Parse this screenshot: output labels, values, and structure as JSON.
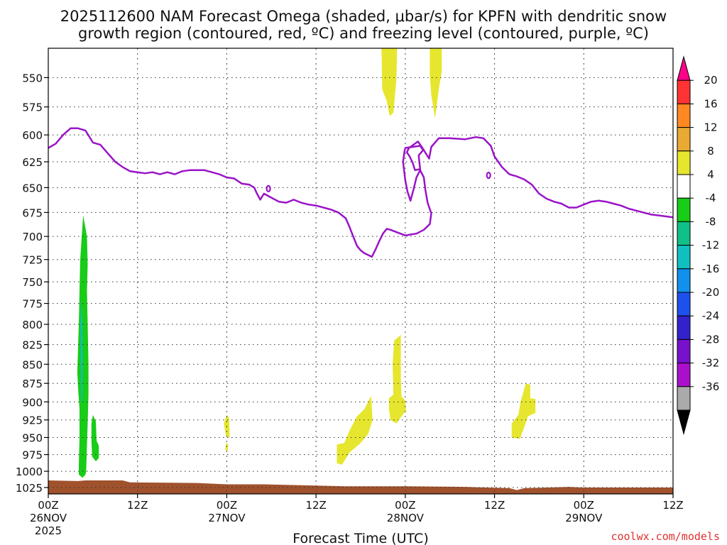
{
  "chart_data": {
    "type": "contour",
    "title_line1": "2025112600 NAM Forecast Omega (shaded, μbar/s) for KPFN with dendritic snow",
    "title_line2": "growth region (contoured, red, ºC) and freezing level (contoured, purple, ºC)",
    "xlabel": "Forecast Time (UTC)",
    "credit": "coolwx.com/models",
    "x_range_hours": [
      0,
      84
    ],
    "x_ticks": [
      {
        "h": 0,
        "label": "00Z",
        "date": "26NOV",
        "year": "2025"
      },
      {
        "h": 12,
        "label": "12Z",
        "date": "",
        "year": ""
      },
      {
        "h": 24,
        "label": "00Z",
        "date": "27NOV",
        "year": ""
      },
      {
        "h": 36,
        "label": "12Z",
        "date": "",
        "year": ""
      },
      {
        "h": 48,
        "label": "00Z",
        "date": "28NOV",
        "year": ""
      },
      {
        "h": 60,
        "label": "12Z",
        "date": "",
        "year": ""
      },
      {
        "h": 72,
        "label": "00Z",
        "date": "29NOV",
        "year": ""
      },
      {
        "h": 84,
        "label": "12Z",
        "date": "",
        "year": ""
      }
    ],
    "y_axis": {
      "unit": "hPa",
      "top": 526,
      "bottom": 1035,
      "log_scale": true,
      "ticks": [
        "550",
        "575",
        "600",
        "625",
        "650",
        "675",
        "700",
        "725",
        "750",
        "775",
        "800",
        "825",
        "850",
        "875",
        "900",
        "925",
        "950",
        "975",
        "1000",
        "1025"
      ]
    },
    "colorbar": {
      "labels": [
        "20",
        "16",
        "12",
        "8",
        "4",
        "-4",
        "-8",
        "-12",
        "-16",
        "-20",
        "-24",
        "-28",
        "-32",
        "-36"
      ],
      "colors": [
        "#ff0088",
        "#ff3333",
        "#ff8822",
        "#e8aa33",
        "#e6e62e",
        "#ffffff",
        "#18cc18",
        "#10c088",
        "#10c0c0",
        "#1190ee",
        "#1e50ee",
        "#3322cc",
        "#7711cc",
        "#aa10cc",
        "#aaaaaa",
        "#000000"
      ]
    },
    "colors": {
      "freezing": "#9a14c8",
      "ground": "#a0522d",
      "positive": "#e6e62e",
      "neg8": "#18cc18",
      "neg12": "#10c088",
      "neg16": "#10c0c0"
    },
    "freezing_level": [
      [
        0,
        612
      ],
      [
        1,
        608
      ],
      [
        2,
        600
      ],
      [
        3,
        594
      ],
      [
        4,
        594
      ],
      [
        5,
        596
      ],
      [
        6,
        607
      ],
      [
        7,
        609
      ],
      [
        8,
        617
      ],
      [
        9,
        625
      ],
      [
        10,
        630
      ],
      [
        11,
        634
      ],
      [
        12,
        635
      ],
      [
        13,
        636
      ],
      [
        14,
        635
      ],
      [
        15,
        637
      ],
      [
        16,
        635
      ],
      [
        17,
        637
      ],
      [
        18,
        634
      ],
      [
        19,
        633
      ],
      [
        20,
        633
      ],
      [
        21,
        633
      ],
      [
        22,
        635
      ],
      [
        23,
        637
      ],
      [
        24,
        640
      ],
      [
        25,
        641
      ],
      [
        26,
        646
      ],
      [
        27,
        647
      ],
      [
        27.7,
        650
      ],
      [
        28,
        655
      ],
      [
        28.5,
        662
      ],
      [
        29,
        656
      ],
      [
        30,
        660
      ],
      [
        31,
        664
      ],
      [
        32,
        665
      ],
      [
        33,
        662
      ],
      [
        34,
        665
      ],
      [
        35,
        667
      ],
      [
        36,
        668
      ],
      [
        37,
        670
      ],
      [
        38,
        672
      ],
      [
        39,
        675
      ],
      [
        40,
        681
      ],
      [
        40.5,
        690
      ],
      [
        41,
        700
      ],
      [
        41.5,
        710
      ],
      [
        42,
        715
      ],
      [
        42.5,
        718
      ],
      [
        43.5,
        722
      ],
      [
        44,
        714
      ],
      [
        44.5,
        705
      ],
      [
        45,
        697
      ],
      [
        45.5,
        692
      ],
      [
        46,
        693
      ],
      [
        47,
        696
      ],
      [
        48,
        699
      ],
      [
        48.7,
        698
      ],
      [
        49.5,
        697
      ],
      [
        50.5,
        693
      ],
      [
        51.3,
        687
      ],
      [
        51.5,
        676
      ],
      [
        51,
        665
      ],
      [
        50.7,
        652
      ],
      [
        50.5,
        640
      ],
      [
        50,
        633
      ],
      [
        49.5,
        640
      ],
      [
        49.1,
        652
      ],
      [
        48.7,
        663
      ],
      [
        48.3,
        654
      ],
      [
        48,
        643
      ],
      [
        47.7,
        625
      ],
      [
        47.9,
        615
      ],
      [
        48,
        612
      ],
      [
        49,
        611
      ],
      [
        50,
        610
      ],
      [
        50.4,
        614
      ],
      [
        49.8,
        619
      ],
      [
        50,
        632
      ],
      [
        49.3,
        633
      ],
      [
        49,
        626
      ],
      [
        48.6,
        620
      ],
      [
        48.2,
        616
      ],
      [
        48.5,
        612
      ],
      [
        49.7,
        606
      ],
      [
        50.3,
        612
      ],
      [
        51.2,
        622
      ],
      [
        51.5,
        611
      ],
      [
        52.5,
        603
      ],
      [
        54,
        603
      ],
      [
        56,
        604
      ],
      [
        57.5,
        602
      ],
      [
        58.5,
        603
      ],
      [
        59.5,
        610
      ],
      [
        60,
        620
      ],
      [
        61,
        630
      ],
      [
        62,
        637
      ],
      [
        63,
        639
      ],
      [
        64,
        642
      ],
      [
        65,
        647
      ],
      [
        66,
        656
      ],
      [
        67,
        661
      ],
      [
        68,
        664
      ],
      [
        69,
        666
      ],
      [
        70,
        670
      ],
      [
        71,
        670
      ],
      [
        72,
        667
      ],
      [
        73,
        664
      ],
      [
        74,
        663
      ],
      [
        75,
        664
      ],
      [
        76,
        666
      ],
      [
        77,
        668
      ],
      [
        78,
        671
      ],
      [
        79,
        673
      ],
      [
        80,
        675
      ],
      [
        81,
        677
      ],
      [
        82,
        678
      ],
      [
        83,
        679
      ],
      [
        84,
        680
      ]
    ],
    "freezing_small_loops": [
      {
        "h": 29.6,
        "p": 651
      },
      {
        "h": 59.2,
        "p": 638
      }
    ],
    "omega_regions": [
      {
        "name": "green-strip",
        "color": "#18cc18",
        "points": [
          [
            4.7,
            678
          ],
          [
            5.2,
            700
          ],
          [
            5.3,
            730
          ],
          [
            5.2,
            760
          ],
          [
            5.3,
            800
          ],
          [
            5.4,
            850
          ],
          [
            5.4,
            890
          ],
          [
            5.3,
            930
          ],
          [
            5.2,
            960
          ],
          [
            5.1,
            1000
          ],
          [
            5.0,
            1005
          ],
          [
            4.6,
            1010
          ],
          [
            4.1,
            1005
          ],
          [
            4.1,
            990
          ],
          [
            4.2,
            950
          ],
          [
            4.2,
            910
          ],
          [
            4.0,
            880
          ],
          [
            3.9,
            860
          ],
          [
            4.0,
            830
          ],
          [
            4.1,
            800
          ],
          [
            4.2,
            760
          ],
          [
            4.3,
            725
          ],
          [
            4.5,
            700
          ]
        ]
      },
      {
        "name": "teal-strip",
        "color": "#10c088",
        "points": [
          [
            4.45,
            770
          ],
          [
            4.6,
            800
          ],
          [
            4.65,
            850
          ],
          [
            4.62,
            900
          ],
          [
            4.45,
            900
          ],
          [
            4.35,
            850
          ],
          [
            4.3,
            800
          ]
        ]
      },
      {
        "name": "cyan-line",
        "color": "#10c0c0",
        "points": [
          [
            4.47,
            775
          ],
          [
            4.55,
            800
          ],
          [
            4.57,
            850
          ],
          [
            4.55,
            895
          ],
          [
            4.47,
            895
          ],
          [
            4.42,
            850
          ],
          [
            4.4,
            800
          ]
        ]
      },
      {
        "name": "green-blob",
        "color": "#18cc18",
        "points": [
          [
            6.0,
            918
          ],
          [
            6.4,
            927
          ],
          [
            6.5,
            955
          ],
          [
            6.8,
            962
          ],
          [
            6.8,
            980
          ],
          [
            6.4,
            985
          ],
          [
            5.9,
            978
          ],
          [
            5.8,
            955
          ],
          [
            5.8,
            930
          ]
        ]
      },
      {
        "name": "yellow-27nov-upper",
        "color": "#e6e62e",
        "points": [
          [
            24.0,
            918
          ],
          [
            24.3,
            922
          ],
          [
            24.4,
            950
          ],
          [
            23.9,
            948
          ],
          [
            23.6,
            930
          ]
        ]
      },
      {
        "name": "yellow-27nov-lower",
        "color": "#e6e62e",
        "points": [
          [
            23.9,
            958
          ],
          [
            24.2,
            960
          ],
          [
            24.1,
            970
          ],
          [
            23.8,
            968
          ]
        ]
      },
      {
        "name": "yellow-28nov-left",
        "color": "#e6e62e",
        "points": [
          [
            42.5,
            910
          ],
          [
            43.4,
            892
          ],
          [
            43.6,
            925
          ],
          [
            43.0,
            945
          ],
          [
            42.0,
            958
          ],
          [
            40.5,
            972
          ],
          [
            39.5,
            990
          ],
          [
            38.8,
            988
          ],
          [
            38.8,
            960
          ],
          [
            39.8,
            958
          ],
          [
            40.5,
            940
          ],
          [
            41.5,
            920
          ]
        ]
      },
      {
        "name": "yellow-28nov-center",
        "color": "#e6e62e",
        "points": [
          [
            46.5,
            820
          ],
          [
            47.4,
            813
          ],
          [
            47.4,
            870
          ],
          [
            47.5,
            893
          ],
          [
            48.0,
            898
          ],
          [
            48.1,
            912
          ],
          [
            47.2,
            924
          ],
          [
            46.8,
            930
          ],
          [
            46.0,
            925
          ],
          [
            45.8,
            910
          ],
          [
            45.8,
            895
          ],
          [
            46.4,
            890
          ],
          [
            46.3,
            850
          ]
        ]
      },
      {
        "name": "yellow-29nov-left",
        "color": "#e6e62e",
        "points": [
          [
            64.2,
            875
          ],
          [
            64.8,
            877
          ],
          [
            64.8,
            895
          ],
          [
            65.5,
            896
          ],
          [
            65.5,
            915
          ],
          [
            64.5,
            920
          ],
          [
            64.0,
            935
          ],
          [
            63.4,
            952
          ],
          [
            62.3,
            950
          ],
          [
            62.3,
            930
          ],
          [
            63.2,
            918
          ],
          [
            63.5,
            900
          ]
        ]
      },
      {
        "name": "yellow-top-left",
        "color": "#e6e62e",
        "points": [
          [
            44.8,
            526
          ],
          [
            46.9,
            526
          ],
          [
            46.8,
            552
          ],
          [
            46.4,
            580
          ],
          [
            45.9,
            583
          ],
          [
            45.5,
            570
          ],
          [
            44.9,
            560
          ]
        ]
      },
      {
        "name": "yellow-top-right",
        "color": "#e6e62e",
        "points": [
          [
            51.3,
            526
          ],
          [
            52.9,
            526
          ],
          [
            52.9,
            545
          ],
          [
            52.5,
            560
          ],
          [
            52.0,
            585
          ],
          [
            51.5,
            565
          ],
          [
            51.3,
            548
          ]
        ]
      }
    ],
    "ground_top": [
      [
        0,
        1014
      ],
      [
        4,
        1015
      ],
      [
        5,
        1014
      ],
      [
        10,
        1014
      ],
      [
        11,
        1017
      ],
      [
        20,
        1018
      ],
      [
        24,
        1020
      ],
      [
        29,
        1020
      ],
      [
        36,
        1022
      ],
      [
        40,
        1023
      ],
      [
        48,
        1023
      ],
      [
        56,
        1024
      ],
      [
        62,
        1026
      ],
      [
        63,
        1029
      ],
      [
        64,
        1026
      ],
      [
        70,
        1024
      ],
      [
        72,
        1025
      ],
      [
        78,
        1025
      ],
      [
        84,
        1025
      ]
    ]
  }
}
